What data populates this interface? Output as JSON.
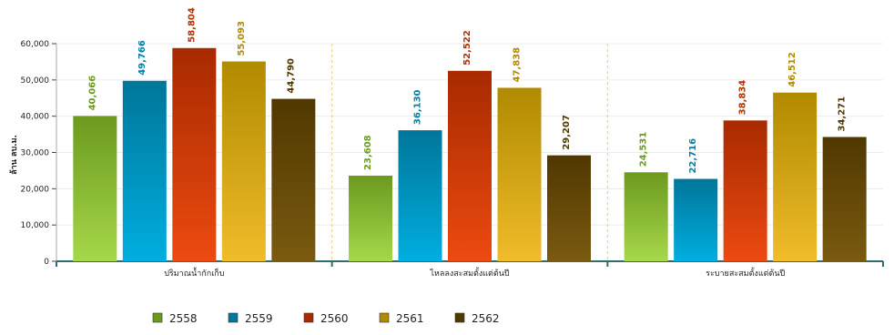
{
  "chart_data": {
    "type": "bar",
    "title": "",
    "xlabel": "",
    "ylabel": "ล้าน ลบ.ม.",
    "ylim": [
      0,
      60000
    ],
    "yticks": [
      0,
      10000,
      20000,
      30000,
      40000,
      50000,
      60000
    ],
    "ytick_labels": [
      "0",
      "10,000",
      "20,000",
      "30,000",
      "40,000",
      "50,000",
      "60,000"
    ],
    "grid": true,
    "legend_position": "bottom",
    "categories": [
      "ปริมาณน้ำกักเก็บ",
      "ไหลลงสะสมตั้งแต่ต้นปี",
      "ระบายสะสมตั้งแต่ต้นปี"
    ],
    "series": [
      {
        "name": "2558",
        "values": [
          40066,
          23608,
          24531
        ],
        "labels": [
          "40,066",
          "23,608",
          "24,531"
        ],
        "color_top": "#6b9a1f",
        "color_bottom": "#a6d84a",
        "label_color": "#6b9a1f"
      },
      {
        "name": "2559",
        "values": [
          49766,
          36130,
          22716
        ],
        "labels": [
          "49,766",
          "36,130",
          "22,716"
        ],
        "color_top": "#00769a",
        "color_bottom": "#00aee0",
        "label_color": "#0080a8"
      },
      {
        "name": "2560",
        "values": [
          58804,
          52522,
          38834
        ],
        "labels": [
          "58,804",
          "52,522",
          "38,834"
        ],
        "color_top": "#a82a00",
        "color_bottom": "#ec4a10",
        "label_color": "#b43000"
      },
      {
        "name": "2561",
        "values": [
          55093,
          47838,
          46512
        ],
        "labels": [
          "55,093",
          "47,838",
          "46,512"
        ],
        "color_top": "#b08a00",
        "color_bottom": "#f0bc2a",
        "label_color": "#b08a00"
      },
      {
        "name": "2562",
        "values": [
          44790,
          29207,
          34271
        ],
        "labels": [
          "44,790",
          "29,207",
          "34,271"
        ],
        "color_top": "#503800",
        "color_bottom": "#7a5a10",
        "label_color": "#503800"
      }
    ]
  }
}
